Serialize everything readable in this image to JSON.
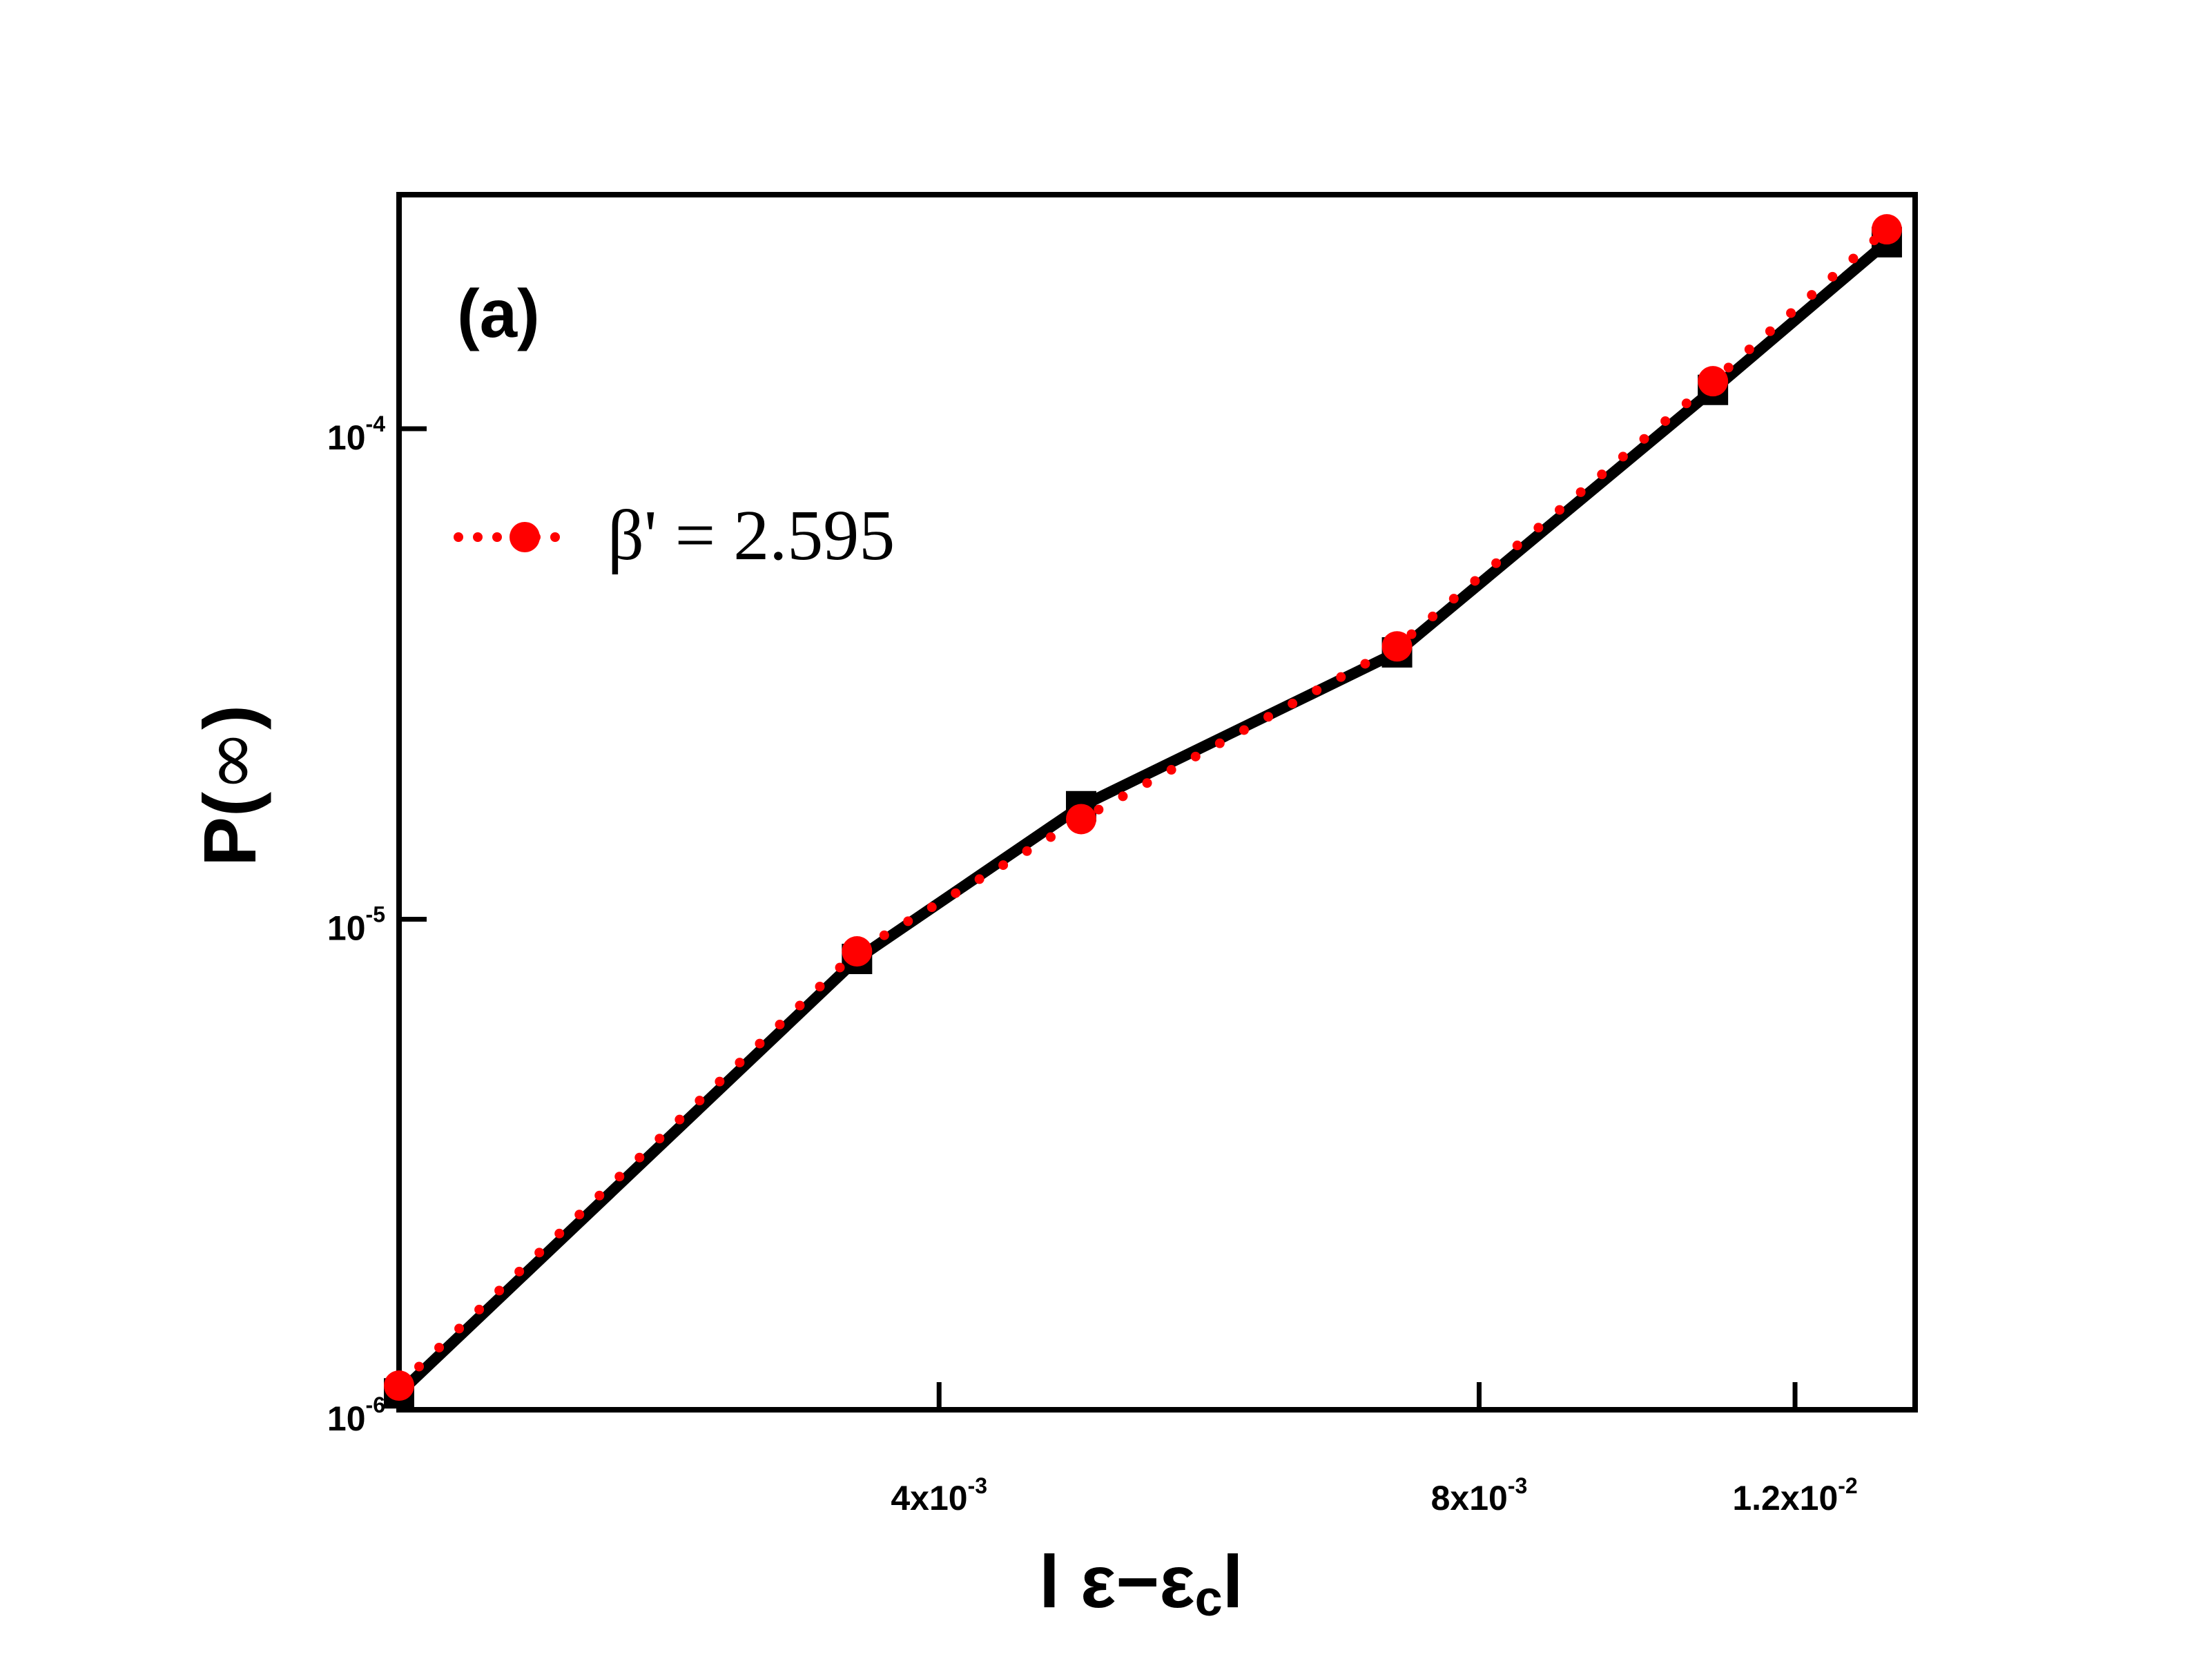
{
  "chart_data": {
    "type": "line",
    "panel_label": "(a)",
    "xlabel": "| ε−εcl",
    "xlabel_parts": {
      "open": "l ",
      "eps": "ε",
      "dash": "−",
      "eps_c": "ε",
      "sub": "c",
      "close": "l"
    },
    "ylabel": "P(∞)",
    "ylabel_parts": {
      "p": "P(",
      "inf": "∞",
      "close": ")"
    },
    "x_scale": "log",
    "y_scale": "log",
    "xlim": [
      0.002,
      0.014
    ],
    "ylim": [
      1e-06,
      0.0003
    ],
    "x_ticks": [
      {
        "value": 0.004,
        "mantissa": "4x10",
        "exponent": "-3"
      },
      {
        "value": 0.008,
        "mantissa": "8x10",
        "exponent": "-3"
      },
      {
        "value": 0.012,
        "mantissa": "1.2x10",
        "exponent": "-2"
      }
    ],
    "y_ticks": [
      {
        "value": 1e-06,
        "mantissa": "10",
        "exponent": "-6"
      },
      {
        "value": 1e-05,
        "mantissa": "10",
        "exponent": "-5"
      },
      {
        "value": 0.0001,
        "mantissa": "10",
        "exponent": "-4"
      }
    ],
    "legend": {
      "placement": "top-left",
      "label": "β' = 2.595"
    },
    "series": [
      {
        "style": "black solid line with square markers",
        "color": "#000000",
        "x": [
          0.002,
          0.0036,
          0.0048,
          0.0072,
          0.0108,
          0.0135
        ],
        "y": [
          1.08e-06,
          8.3e-06,
          1.7e-05,
          3.5e-05,
          0.00012,
          0.00024
        ]
      },
      {
        "name": "β' = 2.595",
        "style": "red dotted line with circle markers",
        "color": "#ff0000",
        "x": [
          0.002,
          0.0036,
          0.0048,
          0.0072,
          0.0108,
          0.0135
        ],
        "y": [
          1.12e-06,
          8.6e-06,
          1.6e-05,
          3.6e-05,
          0.000125,
          0.000255
        ]
      }
    ],
    "grid": false
  }
}
